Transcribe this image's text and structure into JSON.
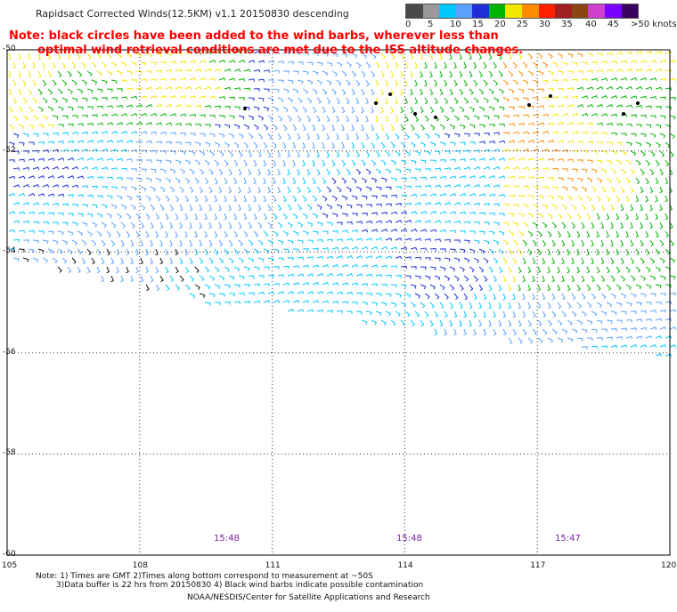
{
  "title": "Rapidsact Corrected Winds(12.5KM) v1.1 20150830 descending",
  "note": {
    "line1": "Note: black circles have been added to the wind barbs, wherever less than",
    "line2": "optimal wind retrieval conditions are met due to the ISS altitude changes."
  },
  "scale": {
    "labels": [
      "0",
      "5",
      "10",
      "15",
      "20",
      "25",
      "30",
      "35",
      "40",
      "45",
      ">50 knots"
    ],
    "colors": [
      "#4a4a4a",
      "#9a9a9a",
      "#00c8ff",
      "#5aa0ff",
      "#1e2fd8",
      "#00b400",
      "#f5e600",
      "#ff8c00",
      "#ff2000",
      "#a02020",
      "#8b4513",
      "#d040d0",
      "#7a00ff",
      "#3a0060"
    ]
  },
  "axes": {
    "lat_labels": [
      "-50",
      "-52",
      "-54",
      "-56",
      "-58",
      "-60"
    ],
    "lon_labels": [
      "105",
      "108",
      "111",
      "114",
      "117",
      "120"
    ]
  },
  "times": [
    "15:48",
    "15:48",
    "15:47"
  ],
  "footer": {
    "line1": "Note: 1) Times are GMT 2)Times along bottom correspond to measurement at ~50S",
    "line2": "3)Data buffer is 22 hrs from 20150830 4) Black wind barbs indicate possible contamination",
    "line3": "NOAA/NESDIS/Center for Satellite Applications and Research"
  }
}
